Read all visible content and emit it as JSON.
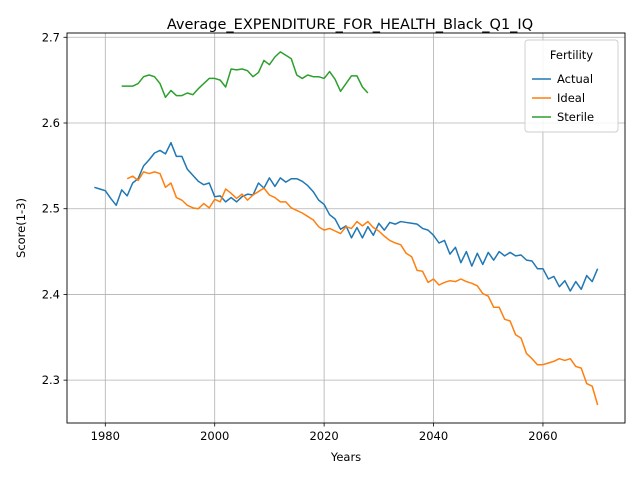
{
  "chart_data": {
    "type": "line",
    "title": "Average_EXPENDITURE_FOR_HEALTH_Black_Q1_IQ",
    "xlabel": "Years",
    "ylabel": "Score(1-3)",
    "xlim": [
      1973,
      2075
    ],
    "ylim": [
      2.25,
      2.705
    ],
    "xticks": [
      1980,
      2000,
      2020,
      2040,
      2060
    ],
    "yticks": [
      2.3,
      2.4,
      2.5,
      2.6,
      2.7
    ],
    "xtick_labels": [
      "1980",
      "2000",
      "2020",
      "2040",
      "2060"
    ],
    "ytick_labels": [
      "2.3",
      "2.4",
      "2.5",
      "2.6",
      "2.7"
    ],
    "grid": true,
    "legend": {
      "title": "Fertility",
      "position": "top-right"
    },
    "series": [
      {
        "name": "Actual",
        "color": "#1f77b4",
        "x": [
          1978,
          1979,
          1980,
          1981,
          1982,
          1983,
          1984,
          1985,
          1986,
          1987,
          1988,
          1989,
          1990,
          1991,
          1992,
          1993,
          1994,
          1995,
          1996,
          1997,
          1998,
          1999,
          2000,
          2001,
          2002,
          2003,
          2004,
          2005,
          2006,
          2007,
          2008,
          2009,
          2010,
          2011,
          2012,
          2013,
          2014,
          2015,
          2016,
          2017,
          2018,
          2019,
          2020,
          2021,
          2022,
          2023,
          2024,
          2025,
          2026,
          2027,
          2028,
          2029,
          2030,
          2031,
          2032,
          2033,
          2034,
          2035,
          2036,
          2037,
          2038,
          2039,
          2040,
          2041,
          2042,
          2043,
          2044,
          2045,
          2046,
          2047,
          2048,
          2049,
          2050,
          2051,
          2052,
          2053,
          2054,
          2055,
          2056,
          2057,
          2058,
          2059,
          2060,
          2061,
          2062,
          2063,
          2064,
          2065,
          2066,
          2067,
          2068,
          2069,
          2070
        ],
        "y": [
          2.525,
          2.523,
          2.521,
          2.512,
          2.504,
          2.522,
          2.515,
          2.53,
          2.535,
          2.55,
          2.557,
          2.565,
          2.568,
          2.564,
          2.577,
          2.561,
          2.561,
          2.546,
          2.539,
          2.532,
          2.528,
          2.53,
          2.514,
          2.515,
          2.508,
          2.513,
          2.508,
          2.514,
          2.517,
          2.516,
          2.53,
          2.524,
          2.536,
          2.526,
          2.536,
          2.531,
          2.535,
          2.535,
          2.532,
          2.527,
          2.52,
          2.51,
          2.505,
          2.493,
          2.488,
          2.476,
          2.48,
          2.466,
          2.478,
          2.466,
          2.479,
          2.469,
          2.483,
          2.475,
          2.484,
          2.482,
          2.485,
          2.484,
          2.483,
          2.482,
          2.477,
          2.475,
          2.469,
          2.46,
          2.463,
          2.447,
          2.455,
          2.437,
          2.45,
          2.433,
          2.448,
          2.435,
          2.449,
          2.44,
          2.45,
          2.445,
          2.449,
          2.445,
          2.446,
          2.44,
          2.439,
          2.43,
          2.43,
          2.418,
          2.421,
          2.409,
          2.416,
          2.404,
          2.415,
          2.406,
          2.422,
          2.415,
          2.43
        ]
      },
      {
        "name": "Ideal",
        "color": "#ff7f0e",
        "x": [
          1984,
          1985,
          1986,
          1987,
          1988,
          1989,
          1990,
          1991,
          1992,
          1993,
          1994,
          1995,
          1996,
          1997,
          1998,
          1999,
          2000,
          2001,
          2002,
          2003,
          2004,
          2005,
          2006,
          2007,
          2008,
          2009,
          2010,
          2011,
          2012,
          2013,
          2014,
          2015,
          2016,
          2017,
          2018,
          2019,
          2020,
          2021,
          2022,
          2023,
          2024,
          2025,
          2026,
          2027,
          2028,
          2029,
          2030,
          2031,
          2032,
          2033,
          2034,
          2035,
          2036,
          2037,
          2038,
          2039,
          2040,
          2041,
          2042,
          2043,
          2044,
          2045,
          2046,
          2047,
          2048,
          2049,
          2050,
          2051,
          2052,
          2053,
          2054,
          2055,
          2056,
          2057,
          2058,
          2059,
          2060,
          2061,
          2062,
          2063,
          2064,
          2065,
          2066,
          2067,
          2068,
          2069,
          2070
        ],
        "y": [
          2.535,
          2.538,
          2.533,
          2.543,
          2.541,
          2.543,
          2.541,
          2.525,
          2.53,
          2.513,
          2.51,
          2.504,
          2.501,
          2.5,
          2.506,
          2.501,
          2.511,
          2.508,
          2.523,
          2.518,
          2.512,
          2.517,
          2.51,
          2.516,
          2.52,
          2.524,
          2.516,
          2.513,
          2.508,
          2.508,
          2.501,
          2.498,
          2.495,
          2.491,
          2.487,
          2.479,
          2.475,
          2.477,
          2.474,
          2.471,
          2.479,
          2.477,
          2.485,
          2.48,
          2.485,
          2.478,
          2.474,
          2.468,
          2.463,
          2.46,
          2.458,
          2.448,
          2.444,
          2.428,
          2.427,
          2.414,
          2.418,
          2.411,
          2.414,
          2.416,
          2.415,
          2.418,
          2.415,
          2.413,
          2.41,
          2.401,
          2.398,
          2.385,
          2.385,
          2.371,
          2.369,
          2.353,
          2.349,
          2.331,
          2.325,
          2.318,
          2.318,
          2.32,
          2.322,
          2.325,
          2.323,
          2.325,
          2.316,
          2.314,
          2.296,
          2.293,
          2.271
        ]
      },
      {
        "name": "Sterile",
        "color": "#2ca02c",
        "x": [
          1983,
          1984,
          1985,
          1986,
          1987,
          1988,
          1989,
          1990,
          1991,
          1992,
          1993,
          1994,
          1995,
          1996,
          1997,
          1998,
          1999,
          2000,
          2001,
          2002,
          2003,
          2004,
          2005,
          2006,
          2007,
          2008,
          2009,
          2010,
          2011,
          2012,
          2013,
          2014,
          2015,
          2016,
          2017,
          2018,
          2019,
          2020,
          2021,
          2022,
          2023,
          2024,
          2025,
          2026,
          2027,
          2028
        ],
        "y": [
          2.643,
          2.643,
          2.643,
          2.646,
          2.654,
          2.656,
          2.654,
          2.646,
          2.63,
          2.638,
          2.632,
          2.632,
          2.635,
          2.633,
          2.64,
          2.646,
          2.652,
          2.652,
          2.65,
          2.642,
          2.663,
          2.662,
          2.663,
          2.661,
          2.654,
          2.659,
          2.673,
          2.668,
          2.677,
          2.683,
          2.679,
          2.675,
          2.656,
          2.652,
          2.656,
          2.654,
          2.654,
          2.652,
          2.66,
          2.651,
          2.637,
          2.646,
          2.655,
          2.655,
          2.642,
          2.635
        ]
      }
    ]
  }
}
